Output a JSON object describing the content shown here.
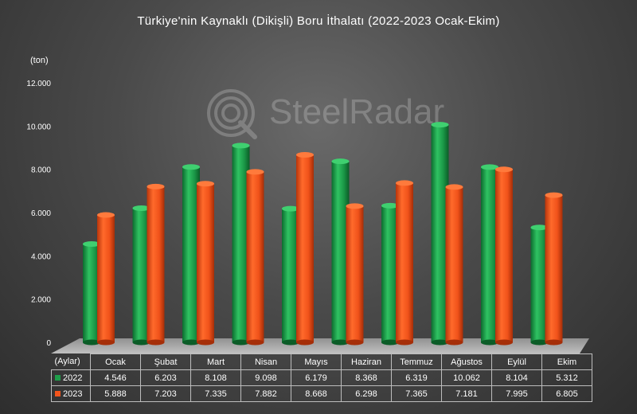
{
  "chart_data": {
    "type": "bar",
    "title": "Türkiye'nin Kaynaklı (Dikişli) Boru İthalatı (2022-2023 Ocak-Ekim)",
    "ylabel": "(ton)",
    "xlabel": "(Aylar)",
    "ylim": [
      0,
      12000
    ],
    "yticks": [
      0,
      2000,
      4000,
      6000,
      8000,
      10000,
      12000
    ],
    "ytick_labels": [
      "0",
      "2.000",
      "4.000",
      "6.000",
      "8.000",
      "10.000",
      "12.000"
    ],
    "categories": [
      "Ocak",
      "Şubat",
      "Mart",
      "Nisan",
      "Mayıs",
      "Haziran",
      "Temmuz",
      "Ağustos",
      "Eylül",
      "Ekim"
    ],
    "series": [
      {
        "name": "2022",
        "color": "#1e9e4a",
        "values": [
          4546,
          6203,
          8108,
          9098,
          6179,
          8368,
          6319,
          10062,
          8104,
          5312
        ],
        "labels": [
          "4.546",
          "6.203",
          "8.108",
          "9.098",
          "6.179",
          "8.368",
          "6.319",
          "10.062",
          "8.104",
          "5.312"
        ]
      },
      {
        "name": "2023",
        "color": "#f2541b",
        "values": [
          5888,
          7203,
          7335,
          7882,
          8668,
          6298,
          7365,
          7181,
          7995,
          6805
        ],
        "labels": [
          "5.888",
          "7.203",
          "7.335",
          "7.882",
          "8.668",
          "6.298",
          "7.365",
          "7.181",
          "7.995",
          "6.805"
        ]
      }
    ],
    "legend": "bottom-table",
    "grid": false
  },
  "watermark": {
    "text": "SteelRadar"
  }
}
